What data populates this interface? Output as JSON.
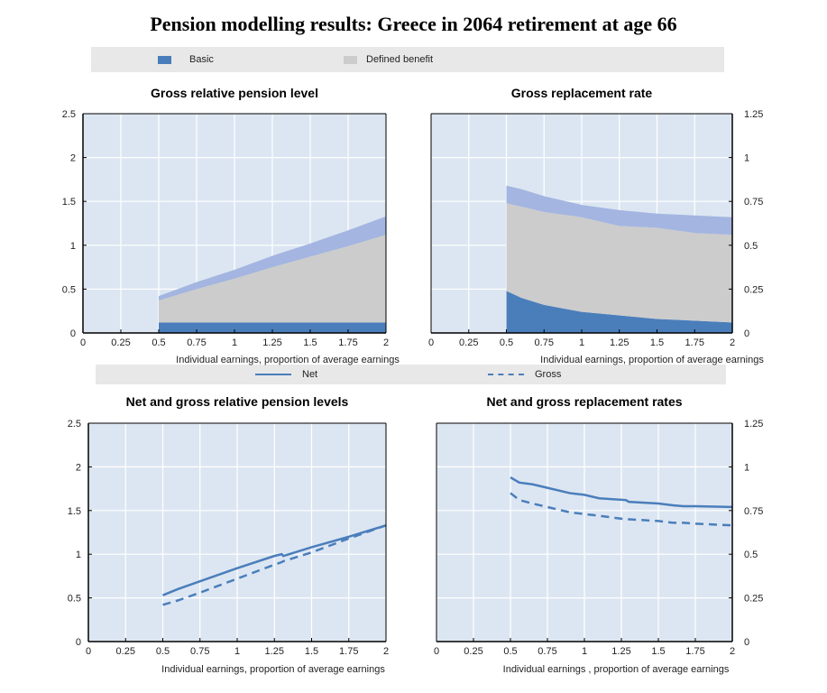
{
  "title": "Pension modelling results: Greece in 2064 retirement at age 66",
  "colors": {
    "basic": "#4a7ebb",
    "defined_benefit": "#cccccc",
    "top_band": "#a3b5e0",
    "plot_bg": "#dce6f2",
    "line": "#4a7ebb",
    "legend_bg": "#e8e8e8"
  },
  "legend_top": {
    "items": [
      {
        "label": "Basic",
        "color": "#4a7ebb"
      },
      {
        "label": "Defined benefit",
        "color": "#cccccc"
      }
    ]
  },
  "legend_bottom": {
    "items": [
      {
        "label": "Net",
        "style": "solid"
      },
      {
        "label": "Gross",
        "style": "dashed"
      }
    ]
  },
  "chart_data": [
    {
      "id": "gross-relative-pension-level",
      "type": "area",
      "stacked": true,
      "title": "Gross relative pension level",
      "xlabel": "Individual earnings, proportion of average earnings",
      "ylabel": "",
      "xlim": [
        0,
        2
      ],
      "ylim": [
        0,
        2.5
      ],
      "xticks": [
        "0",
        "0.25",
        "0.5",
        "0.75",
        "1",
        "1.25",
        "1.5",
        "1.75",
        "2"
      ],
      "yticks": [
        "0",
        "0.5",
        "1",
        "1.5",
        "2",
        "2.5"
      ],
      "y_axis_side": "left",
      "x": [
        0.5,
        0.75,
        1,
        1.25,
        1.5,
        1.75,
        2
      ],
      "series": [
        {
          "name": "Basic",
          "color": "#4a7ebb",
          "values": [
            0.12,
            0.12,
            0.12,
            0.12,
            0.12,
            0.12,
            0.12
          ]
        },
        {
          "name": "Defined benefit",
          "color": "#cccccc",
          "values": [
            0.25,
            0.38,
            0.5,
            0.63,
            0.75,
            0.87,
            1.0
          ]
        },
        {
          "name": "",
          "color": "#a3b5e0",
          "values": [
            0.05,
            0.08,
            0.1,
            0.13,
            0.15,
            0.18,
            0.21
          ]
        }
      ]
    },
    {
      "id": "gross-replacement-rate",
      "type": "area",
      "stacked": true,
      "title": "Gross replacement rate",
      "xlabel": "Individual earnings, proportion of average earnings",
      "ylabel": "",
      "xlim": [
        0,
        2
      ],
      "ylim": [
        0,
        1.25
      ],
      "xticks": [
        "0",
        "0.25",
        "0.5",
        "0.75",
        "1",
        "1.25",
        "1.5",
        "1.75",
        "2"
      ],
      "yticks": [
        "0",
        "0.25",
        "0.5",
        "0.75",
        "1",
        "1.25"
      ],
      "y_axis_side": "right",
      "x": [
        0.5,
        0.6,
        0.75,
        1,
        1.25,
        1.5,
        1.75,
        2
      ],
      "series": [
        {
          "name": "Basic",
          "color": "#4a7ebb",
          "values": [
            0.24,
            0.2,
            0.16,
            0.12,
            0.1,
            0.08,
            0.07,
            0.06
          ]
        },
        {
          "name": "Defined benefit",
          "color": "#cccccc",
          "values": [
            0.5,
            0.52,
            0.53,
            0.54,
            0.51,
            0.52,
            0.5,
            0.5
          ]
        },
        {
          "name": "",
          "color": "#a3b5e0",
          "values": [
            0.1,
            0.1,
            0.09,
            0.07,
            0.09,
            0.08,
            0.1,
            0.1
          ]
        }
      ]
    },
    {
      "id": "net-and-gross-relative-pension-levels",
      "type": "line",
      "title": "Net and gross relative pension levels",
      "xlabel": "Individual earnings, proportion of average earnings",
      "ylabel": "",
      "xlim": [
        0,
        2
      ],
      "ylim": [
        0,
        2.5
      ],
      "xticks": [
        "0",
        "0.25",
        "0.5",
        "0.75",
        "1",
        "1.25",
        "1.5",
        "1.75",
        "2"
      ],
      "yticks": [
        "0",
        "0.5",
        "1",
        "1.5",
        "2",
        "2.5"
      ],
      "y_axis_side": "left",
      "x": [
        0.5,
        0.6,
        0.75,
        1,
        1.25,
        1.3,
        1.31,
        1.5,
        1.75,
        2
      ],
      "series": [
        {
          "name": "Net",
          "style": "solid",
          "values": [
            0.53,
            0.6,
            0.69,
            0.84,
            0.98,
            1.0,
            0.98,
            1.08,
            1.2,
            1.33
          ]
        },
        {
          "name": "Gross",
          "style": "dashed",
          "values": [
            0.42,
            0.47,
            0.56,
            0.72,
            0.88,
            0.91,
            0.92,
            1.02,
            1.18,
            1.33
          ]
        }
      ]
    },
    {
      "id": "net-and-gross-replacement-rates",
      "type": "line",
      "title": "Net and gross replacement rates",
      "xlabel": "Individual earnings , proportion of average earnings",
      "ylabel": "",
      "xlim": [
        0,
        2
      ],
      "ylim": [
        0,
        1.25
      ],
      "xticks": [
        "0",
        "0.25",
        "0.5",
        "0.75",
        "1",
        "1.25",
        "1.5",
        "1.75",
        "2"
      ],
      "yticks": [
        "0",
        "0.25",
        "0.5",
        "0.75",
        "1",
        "1.25"
      ],
      "y_axis_side": "right",
      "x": [
        0.5,
        0.56,
        0.65,
        0.75,
        0.9,
        1,
        1.1,
        1.28,
        1.3,
        1.5,
        1.6,
        1.67,
        1.75,
        2
      ],
      "series": [
        {
          "name": "Net",
          "style": "solid",
          "values": [
            0.94,
            0.91,
            0.9,
            0.88,
            0.85,
            0.84,
            0.82,
            0.81,
            0.8,
            0.79,
            0.78,
            0.775,
            0.775,
            0.77
          ]
        },
        {
          "name": "Gross",
          "style": "dashed",
          "values": [
            0.85,
            0.81,
            0.79,
            0.77,
            0.74,
            0.73,
            0.72,
            0.7,
            0.7,
            0.69,
            0.68,
            0.68,
            0.675,
            0.665
          ]
        }
      ]
    }
  ]
}
